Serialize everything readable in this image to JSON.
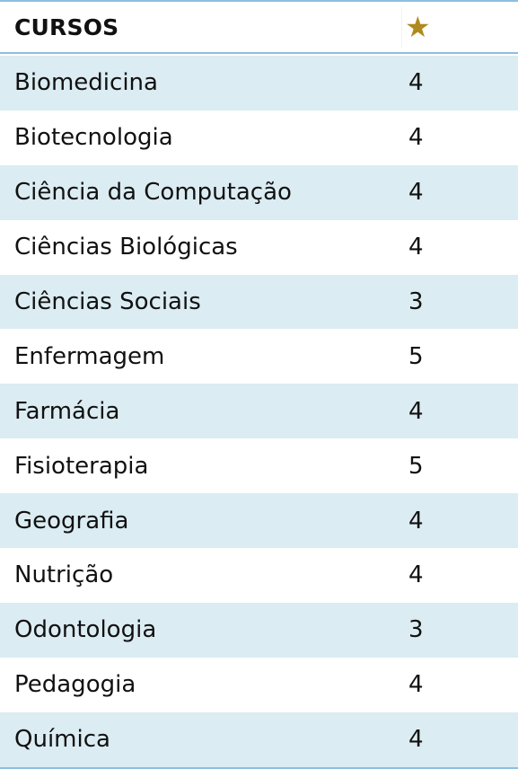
{
  "table": {
    "header": {
      "course_label": "CURSOS",
      "rating_icon": "star-icon",
      "rating_glyph": "★"
    },
    "rows": [
      {
        "course": "Biomedicina",
        "rating": "4"
      },
      {
        "course": "Biotecnologia",
        "rating": "4"
      },
      {
        "course": "Ciência da Computação",
        "rating": "4"
      },
      {
        "course": "Ciências Biológicas",
        "rating": "4"
      },
      {
        "course": "Ciências Sociais",
        "rating": "3"
      },
      {
        "course": "Enfermagem",
        "rating": "5"
      },
      {
        "course": "Farmácia",
        "rating": "4"
      },
      {
        "course": "Fisioterapia",
        "rating": "5"
      },
      {
        "course": "Geografia",
        "rating": "4"
      },
      {
        "course": "Nutrição",
        "rating": "4"
      },
      {
        "course": "Odontologia",
        "rating": "3"
      },
      {
        "course": "Pedagogia",
        "rating": "4"
      },
      {
        "course": "Química",
        "rating": "4"
      }
    ]
  }
}
